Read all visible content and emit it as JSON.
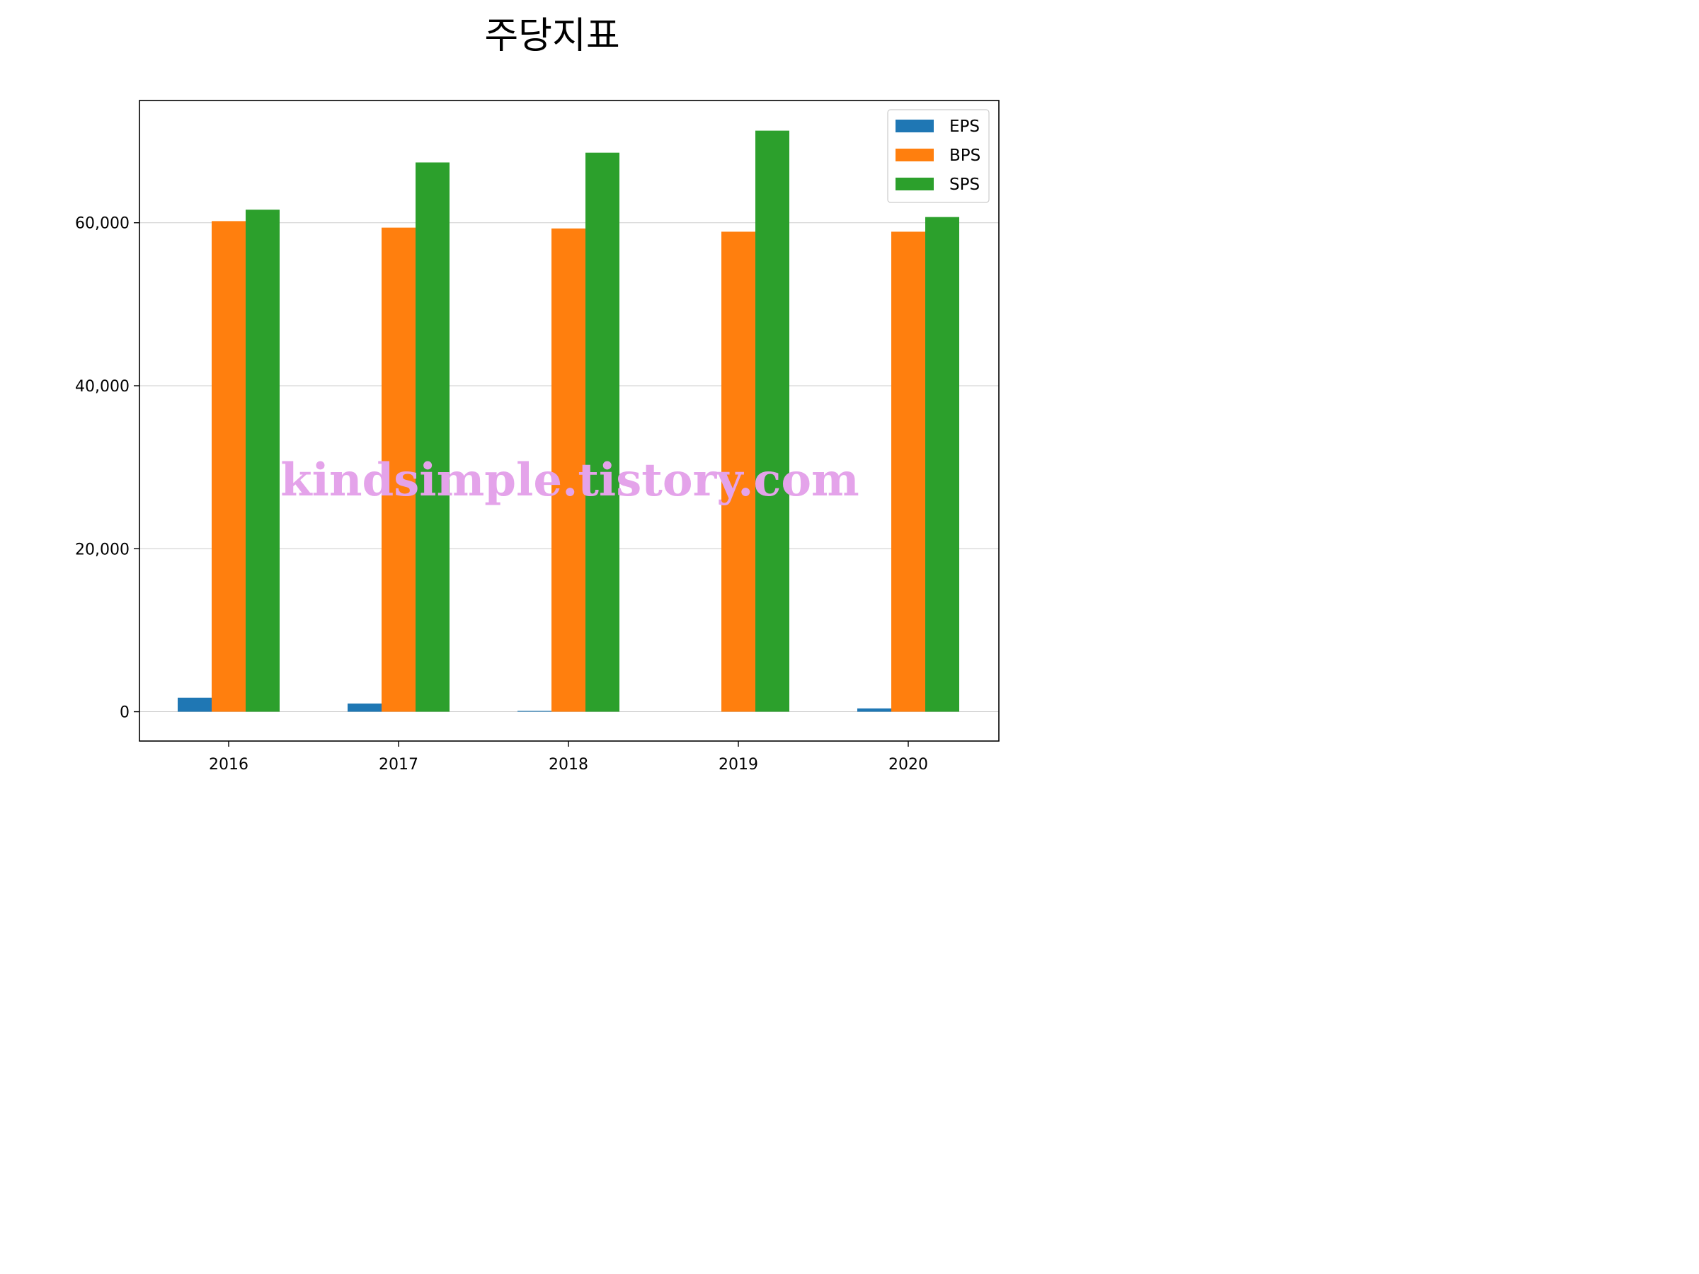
{
  "chart_data": {
    "type": "bar",
    "title": "주당지표",
    "categories": [
      "2016",
      "2017",
      "2018",
      "2019",
      "2020"
    ],
    "series": [
      {
        "name": "EPS",
        "color": "#1f77b4",
        "values": [
          1720,
          1000,
          100,
          0,
          400
        ]
      },
      {
        "name": "BPS",
        "color": "#ff7f0e",
        "values": [
          60200,
          59400,
          59300,
          58900,
          58900
        ]
      },
      {
        "name": "SPS",
        "color": "#2ca02c",
        "values": [
          61600,
          67400,
          68600,
          71300,
          60700
        ]
      }
    ],
    "xlabel": "",
    "ylabel": "",
    "ylim": [
      -3600,
      75000
    ],
    "yticks": [
      0,
      20000,
      40000,
      60000
    ],
    "ytick_labels": [
      "0",
      "20,000",
      "40,000",
      "60,000"
    ],
    "grid": "y",
    "legend_position": "top-right"
  },
  "watermark": "kindsimple.tistory.com"
}
